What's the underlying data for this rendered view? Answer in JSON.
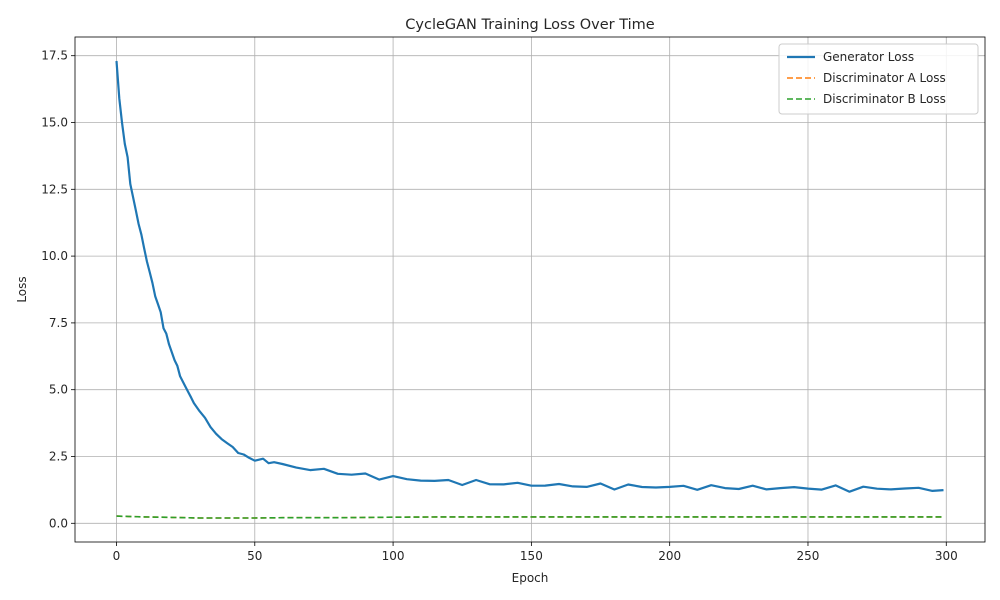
{
  "chart_data": {
    "type": "line",
    "title": "CycleGAN Training Loss Over Time",
    "xlabel": "Epoch",
    "ylabel": "Loss",
    "xlim": [
      -15,
      314
    ],
    "ylim": [
      -0.7,
      18.2
    ],
    "xticks": [
      0,
      50,
      100,
      150,
      200,
      250,
      300
    ],
    "yticks": [
      0.0,
      2.5,
      5.0,
      7.5,
      10.0,
      12.5,
      15.0,
      17.5
    ],
    "ytick_labels": [
      "0.0",
      "2.5",
      "5.0",
      "7.5",
      "10.0",
      "12.5",
      "15.0",
      "17.5"
    ],
    "grid": true,
    "legend_position": "upper right",
    "series": [
      {
        "name": "Generator Loss",
        "color": "#1f77b4",
        "style": "solid",
        "x": [
          0,
          1,
          2,
          3,
          4,
          5,
          6,
          7,
          8,
          9,
          10,
          11,
          12,
          13,
          14,
          15,
          16,
          17,
          18,
          19,
          20,
          21,
          22,
          23,
          24,
          25,
          26,
          27,
          28,
          29,
          30,
          32,
          34,
          36,
          38,
          40,
          42,
          44,
          46,
          48,
          50,
          53,
          55,
          57,
          60,
          65,
          70,
          75,
          80,
          85,
          90,
          95,
          100,
          105,
          110,
          115,
          120,
          125,
          130,
          135,
          140,
          145,
          150,
          155,
          160,
          165,
          170,
          175,
          180,
          185,
          190,
          195,
          200,
          205,
          210,
          215,
          220,
          225,
          230,
          235,
          240,
          245,
          250,
          255,
          260,
          265,
          270,
          275,
          280,
          285,
          290,
          295,
          299
        ],
        "values": [
          17.3,
          15.9,
          15.0,
          14.2,
          13.7,
          12.7,
          12.2,
          11.7,
          11.2,
          10.8,
          10.3,
          9.8,
          9.4,
          9.0,
          8.5,
          8.2,
          7.9,
          7.3,
          7.1,
          6.7,
          6.4,
          6.1,
          5.9,
          5.5,
          5.3,
          5.1,
          4.9,
          4.7,
          4.5,
          4.35,
          4.2,
          3.95,
          3.6,
          3.35,
          3.15,
          3.0,
          2.85,
          2.72,
          2.6,
          2.5,
          2.4,
          2.32,
          2.26,
          2.22,
          2.18,
          2.1,
          2.03,
          1.97,
          1.9,
          1.84,
          1.78,
          1.74,
          1.7,
          1.66,
          1.62,
          1.59,
          1.56,
          1.54,
          1.52,
          1.5,
          1.48,
          1.46,
          1.44,
          1.43,
          1.42,
          1.41,
          1.4,
          1.39,
          1.38,
          1.38,
          1.37,
          1.36,
          1.36,
          1.35,
          1.35,
          1.34,
          1.34,
          1.33,
          1.33,
          1.32,
          1.32,
          1.32,
          1.31,
          1.31,
          1.31,
          1.3,
          1.3,
          1.3,
          1.3,
          1.29,
          1.29,
          1.29,
          1.29
        ]
      },
      {
        "name": "Discriminator A Loss",
        "color": "#ff7f0e",
        "style": "dashed",
        "x": [
          0,
          10,
          20,
          30,
          40,
          50,
          60,
          80,
          100,
          120,
          150,
          200,
          250,
          299
        ],
        "values": [
          0.27,
          0.24,
          0.22,
          0.2,
          0.2,
          0.2,
          0.21,
          0.21,
          0.23,
          0.24,
          0.24,
          0.24,
          0.24,
          0.24
        ]
      },
      {
        "name": "Discriminator B Loss",
        "color": "#2ca02c",
        "style": "dashed",
        "x": [
          0,
          10,
          20,
          30,
          40,
          50,
          60,
          80,
          100,
          120,
          150,
          200,
          250,
          299
        ],
        "values": [
          0.27,
          0.24,
          0.22,
          0.2,
          0.2,
          0.2,
          0.21,
          0.21,
          0.23,
          0.24,
          0.24,
          0.24,
          0.24,
          0.24
        ]
      }
    ]
  }
}
